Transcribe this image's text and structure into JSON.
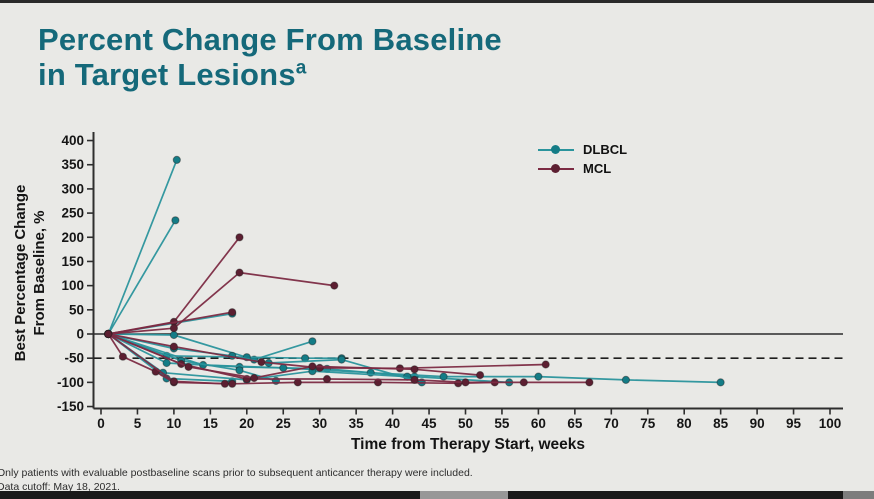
{
  "title": {
    "line1": "Percent Change From Baseline",
    "line2": "in Target Lesions",
    "superscript": "a",
    "color": "#15697a"
  },
  "footnotes": {
    "line1": "Only patients with evaluable postbaseline scans prior to subsequent anticancer therapy were included.",
    "line2": "Data cutoff: May 18, 2021."
  },
  "chart_data": {
    "type": "line",
    "subtype": "spider-plot",
    "title": "Percent Change From Baseline in Target Lesions",
    "xlabel": "Time from Therapy Start, weeks",
    "ylabel": "Best Percentage Change From Baseline, %",
    "ylabel_lines": [
      "Best Percentage Change",
      "From Baseline, %"
    ],
    "xlim": [
      0,
      100
    ],
    "ylim": [
      -150,
      400
    ],
    "x_ticks": [
      0,
      5,
      10,
      15,
      20,
      25,
      30,
      35,
      40,
      45,
      50,
      55,
      60,
      65,
      70,
      75,
      80,
      85,
      90,
      95,
      100
    ],
    "y_ticks": [
      400,
      350,
      300,
      250,
      200,
      150,
      100,
      50,
      0,
      -50,
      -100,
      -150
    ],
    "grid": false,
    "reference_lines": [
      {
        "y": 0,
        "style": "solid",
        "color": "#2b2b2b"
      },
      {
        "y": -50,
        "style": "dashed",
        "color": "#1e1e1e"
      }
    ],
    "legend": {
      "position": "upper-right",
      "items": [
        {
          "label": "DLBCL",
          "color": "#2a949c",
          "dot_color": "#147c86"
        },
        {
          "label": "MCL",
          "color": "#7c2b43",
          "dot_color": "#5c1f31"
        }
      ]
    },
    "series": [
      {
        "name": "DLBCL",
        "color": "#2a949c",
        "dot_color": "#147c86",
        "patients": [
          [
            [
              1,
              0
            ],
            [
              10.4,
              360
            ]
          ],
          [
            [
              1,
              0
            ],
            [
              10.2,
              235
            ]
          ],
          [
            [
              1,
              0
            ],
            [
              10,
              -2
            ],
            [
              21,
              -53
            ],
            [
              29,
              -15
            ]
          ],
          [
            [
              1,
              0
            ],
            [
              9,
              -45
            ],
            [
              20,
              -48
            ],
            [
              28,
              -50
            ],
            [
              33,
              -50
            ]
          ],
          [
            [
              1,
              0
            ],
            [
              9,
              -60
            ],
            [
              19,
              -68
            ],
            [
              31,
              -72
            ],
            [
              43,
              -88
            ],
            [
              56,
              -100
            ]
          ],
          [
            [
              1,
              0
            ],
            [
              14,
              -64
            ],
            [
              25,
              -70
            ],
            [
              37,
              -80
            ],
            [
              47,
              -88
            ],
            [
              60,
              -88
            ],
            [
              72,
              -95
            ],
            [
              85,
              -100
            ]
          ],
          [
            [
              1,
              0
            ],
            [
              9,
              -92
            ],
            [
              18,
              -98
            ]
          ],
          [
            [
              1,
              0
            ],
            [
              8.5,
              -80
            ],
            [
              20,
              -95
            ],
            [
              29,
              -77
            ],
            [
              42,
              -88
            ]
          ],
          [
            [
              1,
              0
            ],
            [
              11,
              -55
            ],
            [
              19,
              -75
            ],
            [
              24,
              -97
            ]
          ],
          [
            [
              1,
              0
            ],
            [
              10,
              -30
            ],
            [
              18,
              -45
            ],
            [
              23,
              -60
            ],
            [
              33,
              -53
            ],
            [
              44,
              -100
            ]
          ],
          [
            [
              1,
              0
            ],
            [
              18,
              42
            ]
          ]
        ]
      },
      {
        "name": "MCL",
        "color": "#7c2b43",
        "dot_color": "#5c1f31",
        "patients": [
          [
            [
              1,
              0
            ],
            [
              10,
              25
            ],
            [
              19,
              200
            ]
          ],
          [
            [
              1,
              0
            ],
            [
              10,
              12
            ],
            [
              19,
              127
            ],
            [
              32,
              100
            ]
          ],
          [
            [
              1,
              0
            ],
            [
              18,
              45
            ]
          ],
          [
            [
              1,
              0
            ],
            [
              3,
              -47
            ],
            [
              7.5,
              -78
            ],
            [
              10,
              -100
            ],
            [
              18,
              -103
            ],
            [
              27,
              -100
            ],
            [
              38,
              -100
            ],
            [
              49,
              -102
            ],
            [
              54,
              -100
            ]
          ],
          [
            [
              1,
              0
            ],
            [
              10,
              -26
            ],
            [
              22,
              -58
            ],
            [
              30,
              -70
            ],
            [
              41,
              -71
            ],
            [
              61,
              -63
            ]
          ],
          [
            [
              1,
              0
            ],
            [
              11,
              -62
            ],
            [
              20,
              -93
            ],
            [
              31,
              -93
            ],
            [
              43,
              -95
            ],
            [
              50,
              -100
            ],
            [
              58,
              -100
            ],
            [
              67,
              -100
            ]
          ],
          [
            [
              1,
              0
            ],
            [
              10,
              -98
            ],
            [
              17,
              -103
            ]
          ],
          [
            [
              1,
              0
            ],
            [
              12,
              -68
            ],
            [
              21,
              -91
            ],
            [
              29,
              -67
            ],
            [
              43,
              -73
            ],
            [
              52,
              -85
            ]
          ]
        ]
      }
    ]
  }
}
